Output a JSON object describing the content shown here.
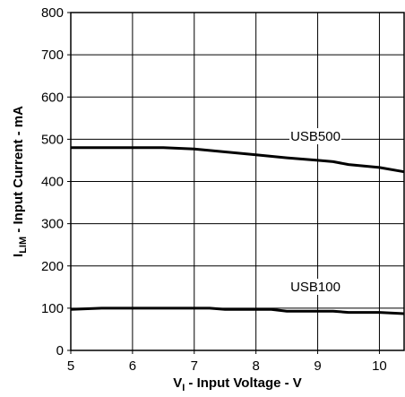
{
  "chart_data": {
    "type": "line",
    "xlabel": {
      "main": "V",
      "sub": "I",
      "rest": " - Input Voltage - V"
    },
    "ylabel": {
      "main": "I",
      "sub": "LIM",
      "rest": " - Input Current - mA"
    },
    "xlim": [
      5,
      10.4
    ],
    "ylim": [
      0,
      800
    ],
    "x_ticks": [
      5,
      6,
      7,
      8,
      9,
      10
    ],
    "y_ticks": [
      0,
      100,
      200,
      300,
      400,
      500,
      600,
      700,
      800
    ],
    "grid": true,
    "series": [
      {
        "name": "USB500",
        "x": [
          5,
          5.5,
          6,
          6.5,
          7,
          7.5,
          8,
          8.5,
          9,
          9.25,
          9.5,
          10,
          10.4
        ],
        "values": [
          480,
          480,
          480,
          480,
          477,
          470,
          463,
          456,
          450,
          447,
          440,
          433,
          423
        ]
      },
      {
        "name": "USB100",
        "x": [
          5,
          5.5,
          6,
          6.5,
          7,
          7.25,
          7.5,
          8,
          8.25,
          8.5,
          9,
          9.25,
          9.5,
          10,
          10.4
        ],
        "values": [
          97,
          100,
          100,
          100,
          100,
          100,
          97,
          97,
          97,
          93,
          93,
          93,
          90,
          90,
          87
        ]
      }
    ],
    "colors": {
      "line": "#000000",
      "grid": "#000000",
      "label_bg": "#ffffff"
    }
  }
}
